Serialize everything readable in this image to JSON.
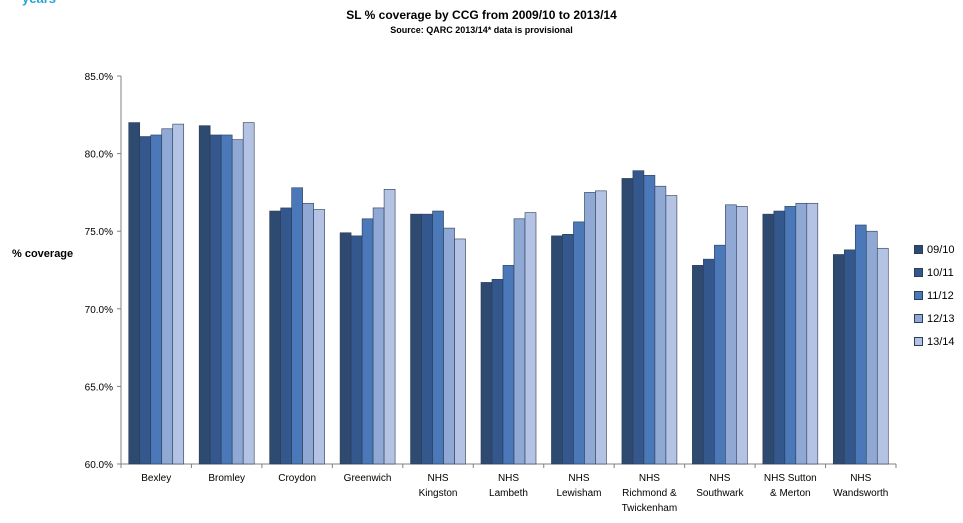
{
  "header_fragment": "years",
  "chart_data": {
    "type": "bar",
    "title": "SL % coverage by CCG from 2009/10 to 2013/14",
    "subtitle": "Source: QARC 2013/14* data is provisional",
    "ylabel": "% coverage",
    "xlabel": "",
    "ylim": [
      60,
      85
    ],
    "yticks": [
      "85.0%",
      "80.0%",
      "75.0%",
      "70.0%",
      "65.0%",
      "60.0%"
    ],
    "ytick_values": [
      85,
      80,
      75,
      70,
      65,
      60
    ],
    "grid": false,
    "legend_position": "right",
    "categories": [
      [
        "Bexley"
      ],
      [
        "Bromley"
      ],
      [
        "Croydon"
      ],
      [
        "Greenwich"
      ],
      [
        "NHS",
        "Kingston"
      ],
      [
        "NHS",
        "Lambeth"
      ],
      [
        "NHS",
        "Lewisham"
      ],
      [
        "NHS",
        "Richmond &",
        "Twickenham"
      ],
      [
        "NHS",
        "Southwark"
      ],
      [
        "NHS Sutton",
        "& Merton"
      ],
      [
        "NHS",
        "Wandsworth"
      ]
    ],
    "series": [
      {
        "name": "09/10",
        "color": "#2e4a70",
        "values": [
          82.0,
          81.8,
          76.3,
          74.9,
          76.1,
          71.7,
          74.7,
          78.4,
          72.8,
          76.1,
          73.5
        ]
      },
      {
        "name": "10/11",
        "color": "#34578d",
        "values": [
          81.1,
          81.2,
          76.5,
          74.7,
          76.1,
          71.9,
          74.8,
          78.9,
          73.2,
          76.3,
          73.8
        ]
      },
      {
        "name": "11/12",
        "color": "#4a78b8",
        "values": [
          81.2,
          81.2,
          77.8,
          75.8,
          76.3,
          72.8,
          75.6,
          78.6,
          74.1,
          76.6,
          75.4
        ]
      },
      {
        "name": "12/13",
        "color": "#8fa8d4",
        "values": [
          81.6,
          80.9,
          76.8,
          76.5,
          75.2,
          75.8,
          77.5,
          77.9,
          76.7,
          76.8,
          75.0
        ]
      },
      {
        "name": "13/14",
        "color": "#b4c3e3",
        "values": [
          81.9,
          82.0,
          76.4,
          77.7,
          74.5,
          76.2,
          77.6,
          77.3,
          76.6,
          76.8,
          73.9
        ]
      }
    ]
  }
}
